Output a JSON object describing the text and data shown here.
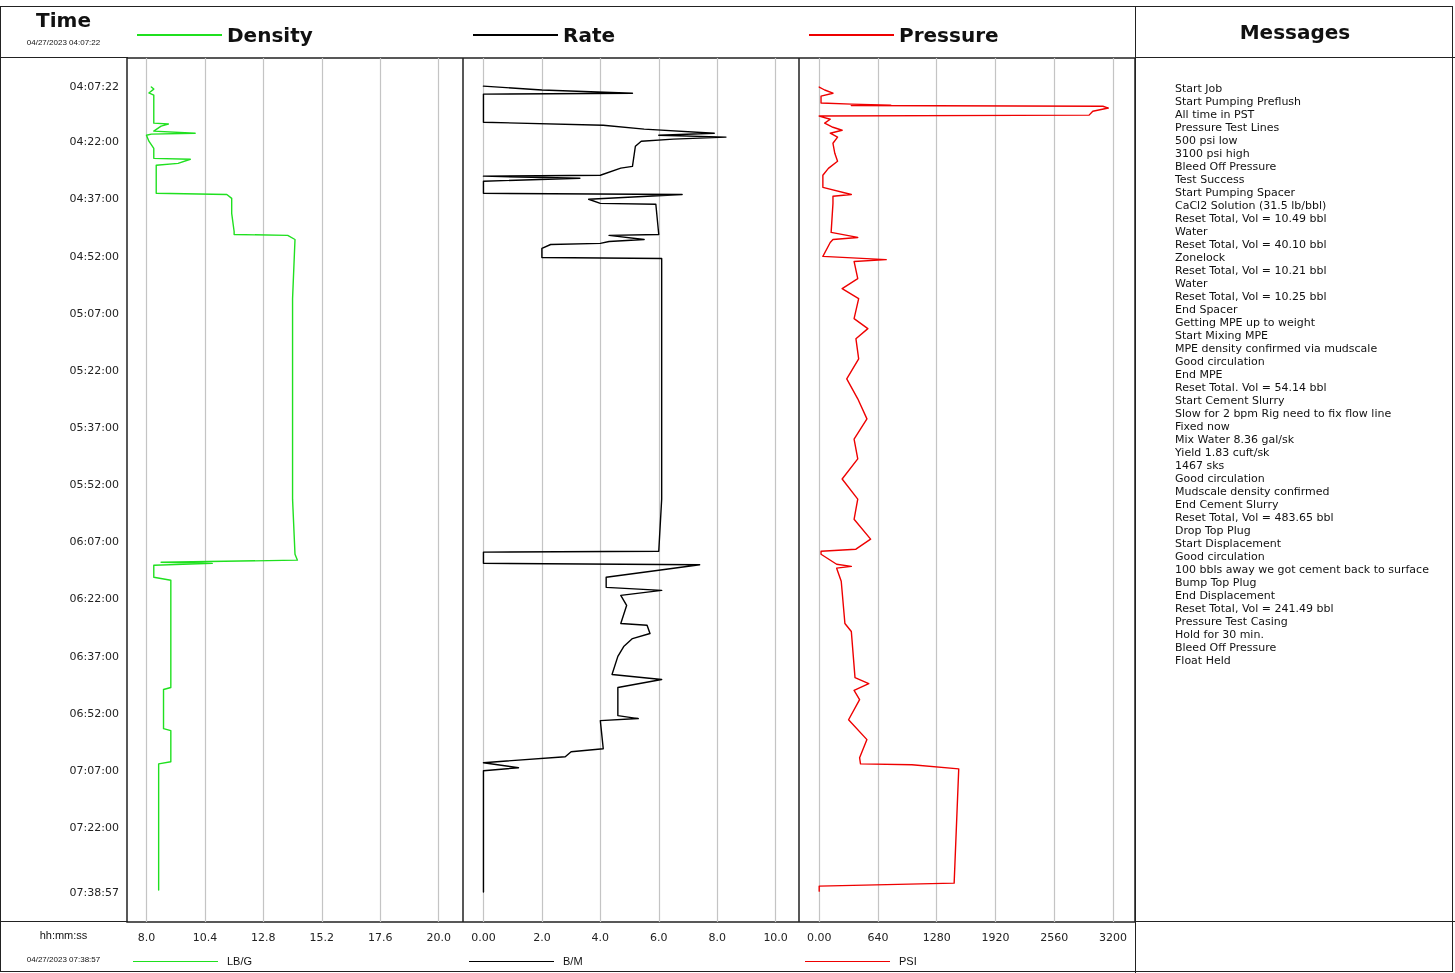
{
  "chart_data": [
    {
      "type": "line",
      "orientation": "horizontal",
      "ylabel": "Time",
      "xlabel": "LB/G",
      "legend": "top left",
      "grid": "x",
      "annotations": [
        "04/27/2023 04:07:22",
        "hh:mm:ss",
        "04/27/2023 07:38:57"
      ],
      "x": [
        4.127,
        4.136,
        4.153,
        4.162,
        4.285,
        4.289,
        4.298,
        4.32,
        4.329,
        4.333,
        4.338,
        4.364,
        4.395,
        4.439,
        4.443,
        4.461,
        4.469,
        4.592,
        4.597,
        4.614,
        4.68,
        4.759,
        4.772,
        4.776,
        4.794,
        5.053,
        5.491,
        5.93,
        6.171,
        6.197,
        6.206,
        6.211,
        6.219,
        6.272,
        6.285,
        6.754,
        6.763,
        6.934,
        6.943,
        7.079,
        7.088,
        7.64
      ],
      "series": [
        {
          "name": "Density",
          "color": "#1fe01f",
          "values": [
            8.2,
            8.3,
            8.1,
            8.3,
            8.3,
            8.9,
            8.6,
            8.3,
            10.0,
            8.2,
            8.0,
            8.1,
            8.3,
            8.3,
            9.8,
            9.3,
            8.4,
            8.4,
            11.3,
            11.5,
            11.5,
            11.6,
            11.6,
            13.8,
            14.1,
            14.0,
            14.0,
            14.0,
            14.1,
            14.2,
            8.6,
            10.7,
            8.3,
            8.3,
            9.0,
            9.0,
            8.7,
            8.7,
            9.0,
            9.0,
            8.5,
            8.5
          ]
        }
      ],
      "xlim": [
        7.2,
        21.0
      ],
      "xticks": [
        {
          "value": 8,
          "label": "8.0"
        },
        10.4,
        12.8,
        15.2,
        17.6,
        {
          "value": 20,
          "label": "20.0"
        }
      ],
      "ylim": [
        7.78,
        4.0
      ],
      "yticks": [
        {
          "value": 4.1228,
          "label": "04:07:22"
        },
        {
          "value": 4.3667,
          "label": "04:22:00"
        },
        {
          "value": 4.6167,
          "label": "04:37:00"
        },
        {
          "value": 4.8667,
          "label": "04:52:00"
        },
        {
          "value": 5.1167,
          "label": "05:07:00"
        },
        {
          "value": 5.3667,
          "label": "05:22:00"
        },
        {
          "value": 5.6167,
          "label": "05:37:00"
        },
        {
          "value": 5.8667,
          "label": "05:52:00"
        },
        {
          "value": 6.1167,
          "label": "06:07:00"
        },
        {
          "value": 6.3667,
          "label": "06:22:00"
        },
        {
          "value": 6.6167,
          "label": "06:37:00"
        },
        {
          "value": 6.8667,
          "label": "06:52:00"
        },
        {
          "value": 7.1167,
          "label": "07:07:00"
        },
        {
          "value": 7.3667,
          "label": "07:22:00"
        },
        {
          "value": 7.6492,
          "label": "07:38:57"
        }
      ]
    },
    {
      "type": "line",
      "orientation": "horizontal",
      "xlabel": "B/M",
      "legend": "top left",
      "grid": "x",
      "tick_labels": "x",
      "x": [
        4.123,
        4.14,
        4.154,
        4.158,
        4.281,
        4.294,
        4.311,
        4.329,
        4.338,
        4.346,
        4.355,
        4.364,
        4.386,
        4.474,
        4.482,
        4.513,
        4.517,
        4.526,
        4.539,
        4.592,
        4.597,
        4.618,
        4.636,
        4.64,
        4.772,
        4.776,
        4.794,
        4.803,
        4.811,
        4.816,
        4.833,
        4.873,
        4.877,
        5.053,
        5.491,
        5.93,
        6.158,
        6.162,
        6.211,
        6.217,
        6.241,
        6.272,
        6.316,
        6.329,
        6.351,
        6.395,
        6.474,
        6.482,
        6.518,
        6.54,
        6.575,
        6.618,
        6.697,
        6.719,
        6.754,
        6.877,
        6.89,
        6.899,
        7.022,
        7.035,
        7.057,
        7.083,
        7.105,
        7.118,
        7.649
      ],
      "series": [
        {
          "name": "Rate",
          "color": "#000000",
          "values": [
            0,
            2.0,
            5.1,
            0,
            0,
            4.1,
            5.5,
            7.9,
            6.0,
            8.3,
            6.5,
            5.4,
            5.2,
            5.1,
            4.7,
            4.0,
            0,
            3.3,
            0,
            0,
            6.8,
            3.6,
            4.0,
            5.9,
            6.0,
            4.3,
            5.5,
            4.3,
            4.0,
            2.3,
            2.0,
            2.0,
            6.1,
            6.1,
            6.1,
            6.1,
            6.0,
            0,
            0,
            7.4,
            6.0,
            4.2,
            4.2,
            6.1,
            4.7,
            4.9,
            4.7,
            5.6,
            5.7,
            5.1,
            4.8,
            4.6,
            4.4,
            6.1,
            4.6,
            4.6,
            5.3,
            4.0,
            4.1,
            3.0,
            2.8,
            0,
            1.2,
            0,
            0
          ]
        }
      ],
      "xlim": [
        -0.7,
        10.8
      ],
      "xticks": [
        {
          "value": 0,
          "label": "0.00"
        },
        {
          "value": 2,
          "label": "2.0"
        },
        {
          "value": 4,
          "label": "4.0"
        },
        {
          "value": 6,
          "label": "6.0"
        },
        {
          "value": 8,
          "label": "8.0"
        },
        {
          "value": 10,
          "label": "10.0"
        }
      ],
      "ylim": [
        7.78,
        4.0
      ]
    },
    {
      "type": "line",
      "orientation": "horizontal",
      "xlabel": "PSI",
      "legend": "top left",
      "grid": "x",
      "tick_labels": "x",
      "x": [
        4.127,
        4.14,
        4.154,
        4.167,
        4.197,
        4.202,
        4.206,
        4.208,
        4.211,
        4.219,
        4.233,
        4.25,
        4.254,
        4.268,
        4.285,
        4.303,
        4.316,
        4.329,
        4.346,
        4.373,
        4.417,
        4.452,
        4.483,
        4.513,
        4.566,
        4.597,
        4.605,
        4.636,
        4.763,
        4.785,
        4.794,
        4.807,
        4.868,
        4.882,
        4.89,
        4.965,
        5.009,
        5.053,
        5.14,
        5.184,
        5.228,
        5.316,
        5.404,
        5.491,
        5.579,
        5.667,
        5.754,
        5.842,
        5.93,
        6.018,
        6.105,
        6.149,
        6.158,
        6.171,
        6.215,
        6.224,
        6.232,
        6.289,
        6.474,
        6.509,
        6.711,
        6.737,
        6.767,
        6.807,
        6.895,
        6.982,
        7.061,
        7.088,
        7.092,
        7.11,
        7.61,
        7.623,
        7.645
      ],
      "series": [
        {
          "name": "Pressure",
          "color": "#ee0000",
          "values": [
            0,
            60,
            150,
            20,
            20,
            350,
            780,
            350,
            3090,
            3150,
            2980,
            2940,
            0,
            120,
            60,
            150,
            250,
            120,
            200,
            150,
            170,
            200,
            100,
            40,
            40,
            350,
            150,
            150,
            130,
            420,
            150,
            120,
            40,
            730,
            380,
            420,
            250,
            430,
            380,
            530,
            400,
            430,
            300,
            420,
            520,
            380,
            420,
            250,
            420,
            380,
            560,
            400,
            20,
            20,
            190,
            350,
            190,
            240,
            280,
            350,
            390,
            540,
            380,
            440,
            320,
            520,
            440,
            450,
            1010,
            1520,
            1470,
            0,
            0
          ]
        }
      ],
      "xlim": [
        -220,
        3440
      ],
      "xticks": [
        {
          "value": 0,
          "label": "0.00"
        },
        640,
        1280,
        1920,
        2560,
        3200
      ],
      "ylim": [
        7.78,
        4.0
      ]
    },
    {
      "type": "other",
      "title": "Messages",
      "annotations": [
        "Start Job",
        "Start Pumping Preflush",
        "All time in PST",
        "Pressure Test Lines",
        "500 psi low",
        "3100 psi high",
        "Bleed Off Pressure",
        "Test Success",
        "Start Pumping Spacer",
        "CaCl2 Solution (31.5 lb/bbl)",
        "Reset Total, Vol = 10.49  bbl",
        "Water",
        "Reset Total, Vol = 40.10  bbl",
        "Zonelock",
        "Reset Total, Vol = 10.21  bbl",
        "Water",
        "Reset Total, Vol = 10.25  bbl",
        "End Spacer",
        "Getting MPE up to weight",
        "Start Mixing  MPE",
        "MPE density confirmed via mudscale",
        "Good circulation",
        "End MPE",
        "Reset Total. Vol = 54.14  bbl",
        "Start Cement Slurry",
        "Slow for 2 bpm Rig need to fix flow line",
        "Fixed now",
        "Mix Water 8.36 gal/sk",
        "Yield 1.83 cuft/sk",
        "1467 sks",
        "Good circulation",
        "Mudscale density confirmed",
        "End Cement Slurry",
        "Reset Total, Vol = 483.65  bbl",
        "Drop Top Plug",
        "Start Displacement",
        "Good circulation",
        "100 bbls away we got cement back to surface",
        "Bump Top Plug",
        "End Displacement",
        "Reset Total, Vol = 241.49  bbl",
        "Pressure Test Casing",
        "Hold for 30 min.",
        "Bleed Off Pressure",
        "Float Held"
      ]
    }
  ]
}
